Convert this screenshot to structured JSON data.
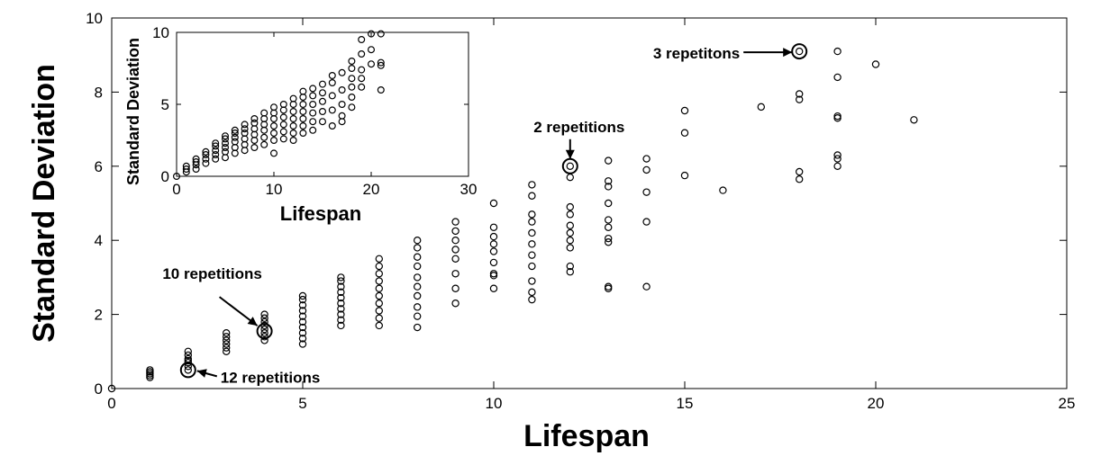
{
  "chart_data": [
    {
      "id": "main",
      "type": "scatter",
      "title": "",
      "xlabel": "Lifespan",
      "ylabel": "Standard Deviation",
      "xlim": [
        0,
        25
      ],
      "ylim": [
        0,
        10
      ],
      "xticks": [
        0,
        5,
        10,
        15,
        20,
        25
      ],
      "yticks": [
        0,
        2,
        4,
        6,
        8,
        10
      ],
      "grid": false,
      "marker_color": "#000000",
      "points": [
        [
          0,
          0
        ],
        [
          1,
          0.3
        ],
        [
          1,
          0.35
        ],
        [
          1,
          0.4
        ],
        [
          1,
          0.45
        ],
        [
          1,
          0.5
        ],
        [
          2,
          0.5
        ],
        [
          2,
          0.6
        ],
        [
          2,
          0.7
        ],
        [
          2,
          0.75
        ],
        [
          2,
          0.8
        ],
        [
          2,
          0.9
        ],
        [
          2,
          1.0
        ],
        [
          3,
          1.0
        ],
        [
          3,
          1.1
        ],
        [
          3,
          1.2
        ],
        [
          3,
          1.3
        ],
        [
          3,
          1.4
        ],
        [
          3,
          1.5
        ],
        [
          4,
          1.3
        ],
        [
          4,
          1.4
        ],
        [
          4,
          1.5
        ],
        [
          4,
          1.6
        ],
        [
          4,
          1.7
        ],
        [
          4,
          1.8
        ],
        [
          4,
          1.9
        ],
        [
          4,
          2.0
        ],
        [
          5,
          1.2
        ],
        [
          5,
          1.35
        ],
        [
          5,
          1.5
        ],
        [
          5,
          1.65
        ],
        [
          5,
          1.8
        ],
        [
          5,
          1.95
        ],
        [
          5,
          2.1
        ],
        [
          5,
          2.25
        ],
        [
          5,
          2.4
        ],
        [
          5,
          2.5
        ],
        [
          6,
          1.7
        ],
        [
          6,
          1.85
        ],
        [
          6,
          2.0
        ],
        [
          6,
          2.15
        ],
        [
          6,
          2.3
        ],
        [
          6,
          2.45
        ],
        [
          6,
          2.6
        ],
        [
          6,
          2.75
        ],
        [
          6,
          2.9
        ],
        [
          6,
          3.0
        ],
        [
          7,
          1.7
        ],
        [
          7,
          1.9
        ],
        [
          7,
          2.1
        ],
        [
          7,
          2.3
        ],
        [
          7,
          2.5
        ],
        [
          7,
          2.7
        ],
        [
          7,
          2.9
        ],
        [
          7,
          3.1
        ],
        [
          7,
          3.3
        ],
        [
          7,
          3.5
        ],
        [
          8,
          1.65
        ],
        [
          8,
          1.95
        ],
        [
          8,
          2.2
        ],
        [
          8,
          2.5
        ],
        [
          8,
          2.75
        ],
        [
          8,
          3.0
        ],
        [
          8,
          3.3
        ],
        [
          8,
          3.55
        ],
        [
          8,
          3.8
        ],
        [
          8,
          4.0
        ],
        [
          9,
          2.3
        ],
        [
          9,
          2.7
        ],
        [
          9,
          3.1
        ],
        [
          9,
          3.5
        ],
        [
          9,
          3.75
        ],
        [
          9,
          4.0
        ],
        [
          9,
          4.25
        ],
        [
          9,
          4.5
        ],
        [
          10,
          2.7
        ],
        [
          10,
          3.05
        ],
        [
          10,
          3.1
        ],
        [
          10,
          3.4
        ],
        [
          10,
          3.7
        ],
        [
          10,
          3.9
        ],
        [
          10,
          4.1
        ],
        [
          10,
          4.35
        ],
        [
          10,
          5.0
        ],
        [
          11,
          2.4
        ],
        [
          11,
          2.6
        ],
        [
          11,
          2.9
        ],
        [
          11,
          3.3
        ],
        [
          11,
          3.6
        ],
        [
          11,
          3.9
        ],
        [
          11,
          4.2
        ],
        [
          11,
          4.5
        ],
        [
          11,
          4.7
        ],
        [
          11,
          5.2
        ],
        [
          11,
          5.5
        ],
        [
          12,
          3.15
        ],
        [
          12,
          3.3
        ],
        [
          12,
          3.8
        ],
        [
          12,
          4.0
        ],
        [
          12,
          4.2
        ],
        [
          12,
          4.4
        ],
        [
          12,
          4.7
        ],
        [
          12,
          4.9
        ],
        [
          12,
          5.7
        ],
        [
          12,
          6.0
        ],
        [
          13,
          2.7
        ],
        [
          13,
          2.75
        ],
        [
          13,
          3.95
        ],
        [
          13,
          4.05
        ],
        [
          13,
          4.35
        ],
        [
          13,
          4.55
        ],
        [
          13,
          5.0
        ],
        [
          13,
          5.45
        ],
        [
          13,
          5.6
        ],
        [
          13,
          6.15
        ],
        [
          14,
          2.75
        ],
        [
          14,
          4.5
        ],
        [
          14,
          5.3
        ],
        [
          14,
          5.9
        ],
        [
          14,
          6.2
        ],
        [
          15,
          5.75
        ],
        [
          15,
          6.9
        ],
        [
          15,
          7.5
        ],
        [
          16,
          5.35
        ],
        [
          17,
          7.6
        ],
        [
          18,
          5.65
        ],
        [
          18,
          5.85
        ],
        [
          18,
          7.8
        ],
        [
          18,
          7.95
        ],
        [
          18,
          9.1
        ],
        [
          19,
          6.0
        ],
        [
          19,
          6.2
        ],
        [
          19,
          6.3
        ],
        [
          19,
          7.3
        ],
        [
          19,
          7.35
        ],
        [
          19,
          8.4
        ],
        [
          19,
          9.1
        ],
        [
          20,
          8.75
        ],
        [
          21,
          7.25
        ]
      ],
      "annotations": [
        {
          "text": "3 repetitons",
          "point": [
            18,
            9.1
          ]
        },
        {
          "text": "2 repetitions",
          "point": [
            12,
            6.0
          ]
        },
        {
          "text": "10 repetitions",
          "point": [
            4,
            1.55
          ]
        },
        {
          "text": "12 repetitions",
          "point": [
            2,
            0.5
          ]
        }
      ]
    },
    {
      "id": "inset",
      "type": "scatter",
      "title": "",
      "xlabel": "Lifespan",
      "ylabel": "Standard Deviation",
      "xlim": [
        0,
        30
      ],
      "ylim": [
        0,
        10
      ],
      "xticks": [
        0,
        10,
        20,
        30
      ],
      "yticks": [
        0,
        5,
        10
      ],
      "grid": false,
      "marker_color": "#000000",
      "points": [
        [
          0,
          0
        ],
        [
          1,
          0.3
        ],
        [
          1,
          0.5
        ],
        [
          1,
          0.7
        ],
        [
          2,
          0.5
        ],
        [
          2,
          0.8
        ],
        [
          2,
          1.0
        ],
        [
          2,
          1.2
        ],
        [
          3,
          0.9
        ],
        [
          3,
          1.2
        ],
        [
          3,
          1.5
        ],
        [
          3,
          1.7
        ],
        [
          4,
          1.2
        ],
        [
          4,
          1.5
        ],
        [
          4,
          1.8
        ],
        [
          4,
          2.1
        ],
        [
          4,
          2.3
        ],
        [
          5,
          1.3
        ],
        [
          5,
          1.7
        ],
        [
          5,
          2.0
        ],
        [
          5,
          2.3
        ],
        [
          5,
          2.6
        ],
        [
          5,
          2.8
        ],
        [
          6,
          1.6
        ],
        [
          6,
          2.0
        ],
        [
          6,
          2.4
        ],
        [
          6,
          2.7
        ],
        [
          6,
          3.0
        ],
        [
          6,
          3.2
        ],
        [
          7,
          1.8
        ],
        [
          7,
          2.2
        ],
        [
          7,
          2.6
        ],
        [
          7,
          3.0
        ],
        [
          7,
          3.3
        ],
        [
          7,
          3.6
        ],
        [
          8,
          2.0
        ],
        [
          8,
          2.5
        ],
        [
          8,
          2.9
        ],
        [
          8,
          3.3
        ],
        [
          8,
          3.7
        ],
        [
          8,
          4.0
        ],
        [
          9,
          2.2
        ],
        [
          9,
          2.7
        ],
        [
          9,
          3.2
        ],
        [
          9,
          3.6
        ],
        [
          9,
          4.0
        ],
        [
          9,
          4.4
        ],
        [
          10,
          1.6
        ],
        [
          10,
          2.5
        ],
        [
          10,
          3.0
        ],
        [
          10,
          3.5
        ],
        [
          10,
          4.0
        ],
        [
          10,
          4.4
        ],
        [
          10,
          4.8
        ],
        [
          11,
          2.6
        ],
        [
          11,
          3.1
        ],
        [
          11,
          3.6
        ],
        [
          11,
          4.1
        ],
        [
          11,
          4.6
        ],
        [
          11,
          5.0
        ],
        [
          12,
          2.5
        ],
        [
          12,
          3.0
        ],
        [
          12,
          3.5
        ],
        [
          12,
          4.0
        ],
        [
          12,
          4.5
        ],
        [
          12,
          5.0
        ],
        [
          12,
          5.4
        ],
        [
          13,
          3.0
        ],
        [
          13,
          3.5
        ],
        [
          13,
          4.0
        ],
        [
          13,
          4.5
        ],
        [
          13,
          5.0
        ],
        [
          13,
          5.5
        ],
        [
          13,
          5.9
        ],
        [
          14,
          3.2
        ],
        [
          14,
          3.8
        ],
        [
          14,
          4.4
        ],
        [
          14,
          5.0
        ],
        [
          14,
          5.6
        ],
        [
          14,
          6.1
        ],
        [
          15,
          3.8
        ],
        [
          15,
          4.5
        ],
        [
          15,
          5.2
        ],
        [
          15,
          5.8
        ],
        [
          15,
          6.4
        ],
        [
          16,
          3.5
        ],
        [
          16,
          4.6
        ],
        [
          16,
          5.6
        ],
        [
          16,
          6.5
        ],
        [
          16,
          7.0
        ],
        [
          17,
          3.8
        ],
        [
          17,
          4.2
        ],
        [
          17,
          5.0
        ],
        [
          17,
          6.0
        ],
        [
          17,
          7.2
        ],
        [
          18,
          4.8
        ],
        [
          18,
          5.5
        ],
        [
          18,
          6.2
        ],
        [
          18,
          6.8
        ],
        [
          18,
          7.5
        ],
        [
          18,
          8.0
        ],
        [
          19,
          6.2
        ],
        [
          19,
          6.8
        ],
        [
          19,
          7.4
        ],
        [
          19,
          8.5
        ],
        [
          19,
          9.5
        ],
        [
          20,
          7.8
        ],
        [
          20,
          8.8
        ],
        [
          20,
          9.9
        ],
        [
          21,
          6.0
        ],
        [
          21,
          7.7
        ],
        [
          21,
          7.9
        ],
        [
          21,
          9.9
        ]
      ]
    }
  ]
}
